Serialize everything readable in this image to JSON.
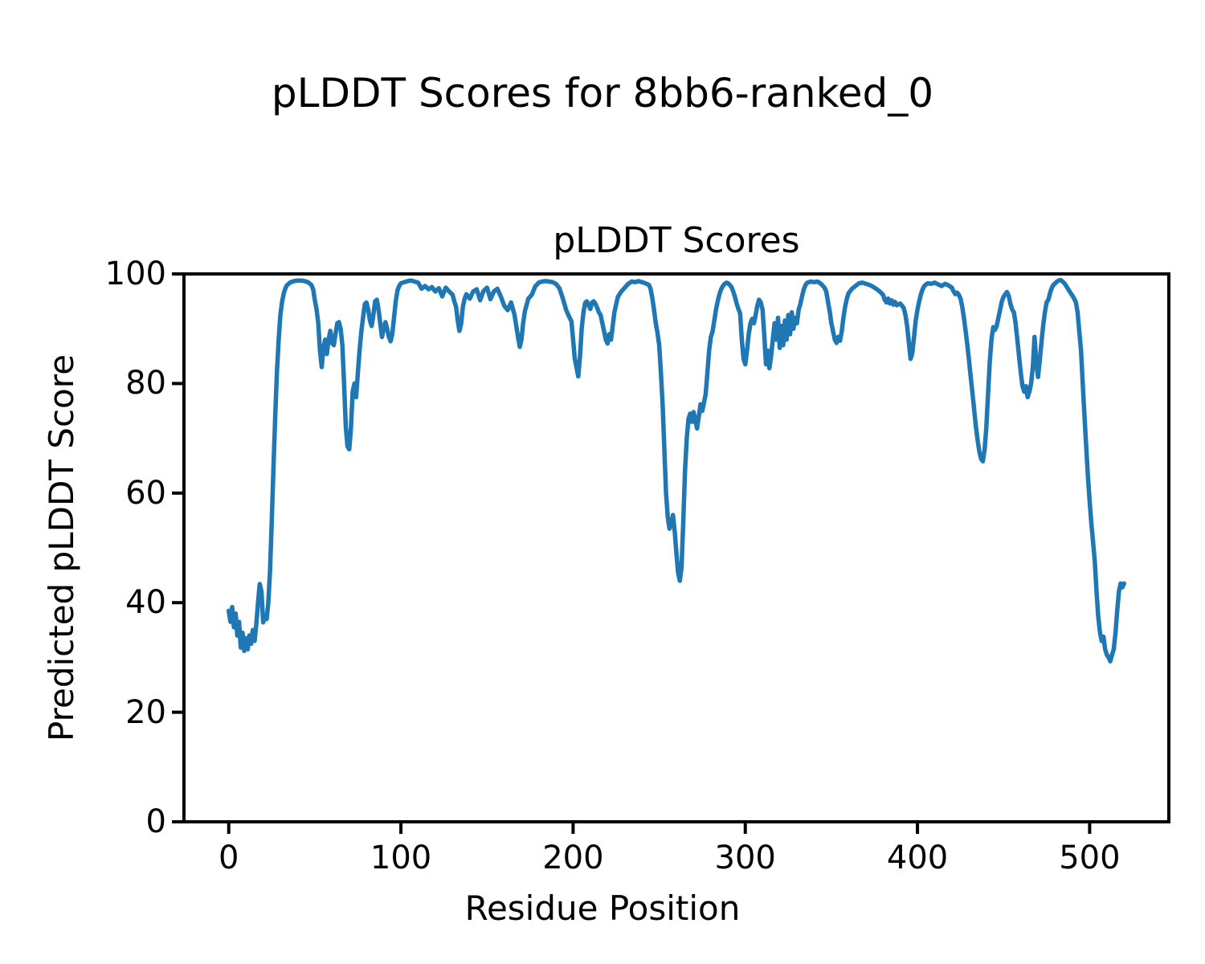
{
  "figure": {
    "suptitle": "pLDDT Scores for 8bb6-ranked_0"
  },
  "chart_data": {
    "type": "line",
    "title": "pLDDT Scores",
    "xlabel": "Residue Position",
    "ylabel": "Predicted pLDDT Score",
    "xlim": [
      -26,
      546
    ],
    "ylim": [
      0,
      100
    ],
    "xticks": [
      0,
      100,
      200,
      300,
      400,
      500
    ],
    "yticks": [
      0,
      20,
      40,
      60,
      80,
      100
    ],
    "grid": false,
    "legend_visible": false,
    "line_color": "#1f77b4",
    "series_name": "pLDDT",
    "points": [
      [
        0,
        38.5
      ],
      [
        1,
        36.5
      ],
      [
        2,
        39.2
      ],
      [
        3,
        35.5
      ],
      [
        4,
        38
      ],
      [
        5,
        34
      ],
      [
        6,
        36.5
      ],
      [
        7,
        31.8
      ],
      [
        8,
        34.5
      ],
      [
        9,
        31.2
      ],
      [
        10,
        33.5
      ],
      [
        11,
        31.5
      ],
      [
        12,
        34
      ],
      [
        13,
        32.5
      ],
      [
        14,
        35
      ],
      [
        15,
        33
      ],
      [
        16,
        36
      ],
      [
        17,
        40
      ],
      [
        18,
        43.4
      ],
      [
        19,
        42
      ],
      [
        20,
        36.4
      ],
      [
        21,
        37.5
      ],
      [
        22,
        37
      ],
      [
        23,
        40
      ],
      [
        24,
        46
      ],
      [
        25,
        55
      ],
      [
        26,
        65
      ],
      [
        27,
        74
      ],
      [
        28,
        82
      ],
      [
        29,
        88
      ],
      [
        30,
        92.5
      ],
      [
        31,
        95
      ],
      [
        32,
        96.5
      ],
      [
        33,
        97.5
      ],
      [
        34,
        98
      ],
      [
        36,
        98.5
      ],
      [
        38,
        98.7
      ],
      [
        40,
        98.8
      ],
      [
        42,
        98.8
      ],
      [
        44,
        98.7
      ],
      [
        46,
        98.5
      ],
      [
        48,
        98
      ],
      [
        49,
        97.2
      ],
      [
        50,
        95.2
      ],
      [
        51,
        93.6
      ],
      [
        52,
        91
      ],
      [
        53,
        86
      ],
      [
        54,
        83
      ],
      [
        55,
        86.5
      ],
      [
        56,
        88
      ],
      [
        57,
        85.4
      ],
      [
        58,
        88
      ],
      [
        59,
        89.6
      ],
      [
        60,
        87.4
      ],
      [
        61,
        87
      ],
      [
        62,
        89
      ],
      [
        63,
        91
      ],
      [
        64,
        91.2
      ],
      [
        65,
        90
      ],
      [
        66,
        87
      ],
      [
        67,
        80
      ],
      [
        68,
        72
      ],
      [
        69,
        68.5
      ],
      [
        70,
        68
      ],
      [
        71,
        72
      ],
      [
        72,
        78.5
      ],
      [
        73,
        80
      ],
      [
        74,
        77.5
      ],
      [
        75,
        82
      ],
      [
        76,
        86
      ],
      [
        77,
        89.5
      ],
      [
        78,
        92
      ],
      [
        79,
        94.5
      ],
      [
        80,
        94.8
      ],
      [
        81,
        93.5
      ],
      [
        82,
        91.5
      ],
      [
        83,
        90.5
      ],
      [
        84,
        92.5
      ],
      [
        85,
        95
      ],
      [
        86,
        95.3
      ],
      [
        87,
        93.5
      ],
      [
        88,
        91
      ],
      [
        89,
        88.5
      ],
      [
        90,
        90
      ],
      [
        91,
        91.2
      ],
      [
        92,
        90
      ],
      [
        93,
        88.5
      ],
      [
        94,
        87.7
      ],
      [
        95,
        89
      ],
      [
        96,
        92
      ],
      [
        97,
        95
      ],
      [
        98,
        97
      ],
      [
        99,
        97.8
      ],
      [
        100,
        98.3
      ],
      [
        102,
        98.5
      ],
      [
        104,
        98.7
      ],
      [
        106,
        98.8
      ],
      [
        108,
        98.6
      ],
      [
        110,
        98.4
      ],
      [
        112,
        97.3
      ],
      [
        114,
        97.8
      ],
      [
        116,
        97.2
      ],
      [
        118,
        97.6
      ],
      [
        120,
        96.8
      ],
      [
        122,
        97.4
      ],
      [
        124,
        95.9
      ],
      [
        126,
        97.5
      ],
      [
        128,
        96.8
      ],
      [
        130,
        96.2
      ],
      [
        131,
        95
      ],
      [
        132,
        94
      ],
      [
        133,
        91.5
      ],
      [
        134,
        89.6
      ],
      [
        135,
        91
      ],
      [
        136,
        94
      ],
      [
        137,
        95.5
      ],
      [
        138,
        96.3
      ],
      [
        140,
        95.5
      ],
      [
        142,
        96.8
      ],
      [
        144,
        97.2
      ],
      [
        146,
        95.2
      ],
      [
        148,
        96.9
      ],
      [
        150,
        97.5
      ],
      [
        152,
        95.4
      ],
      [
        154,
        96.8
      ],
      [
        156,
        97.3
      ],
      [
        158,
        95.9
      ],
      [
        160,
        94.2
      ],
      [
        162,
        93.4
      ],
      [
        164,
        94.8
      ],
      [
        166,
        92.5
      ],
      [
        168,
        88.5
      ],
      [
        169,
        86.7
      ],
      [
        170,
        88
      ],
      [
        171,
        91
      ],
      [
        172,
        93.2
      ],
      [
        174,
        95.5
      ],
      [
        176,
        96.2
      ],
      [
        178,
        97.7
      ],
      [
        180,
        98.4
      ],
      [
        182,
        98.6
      ],
      [
        184,
        98.7
      ],
      [
        186,
        98.6
      ],
      [
        188,
        98.5
      ],
      [
        190,
        98.2
      ],
      [
        192,
        97.4
      ],
      [
        194,
        95.6
      ],
      [
        196,
        93.4
      ],
      [
        198,
        92
      ],
      [
        199,
        91.4
      ],
      [
        200,
        88
      ],
      [
        201,
        84.5
      ],
      [
        202,
        82.9
      ],
      [
        203,
        81.3
      ],
      [
        204,
        85
      ],
      [
        205,
        90
      ],
      [
        206,
        93
      ],
      [
        207,
        94.7
      ],
      [
        208,
        95
      ],
      [
        209,
        94.3
      ],
      [
        210,
        93.6
      ],
      [
        211,
        94.8
      ],
      [
        212,
        95
      ],
      [
        213,
        94.5
      ],
      [
        214,
        93.8
      ],
      [
        215,
        93
      ],
      [
        216,
        92.5
      ],
      [
        217,
        91
      ],
      [
        218,
        89.5
      ],
      [
        219,
        88
      ],
      [
        220,
        87.3
      ],
      [
        221,
        89
      ],
      [
        222,
        88
      ],
      [
        223,
        90.5
      ],
      [
        224,
        93
      ],
      [
        226,
        95.8
      ],
      [
        228,
        96.8
      ],
      [
        230,
        97.5
      ],
      [
        232,
        98.2
      ],
      [
        234,
        98.6
      ],
      [
        236,
        98.5
      ],
      [
        238,
        98.7
      ],
      [
        240,
        98.5
      ],
      [
        242,
        98.3
      ],
      [
        244,
        98
      ],
      [
        245,
        97.3
      ],
      [
        246,
        95.6
      ],
      [
        247,
        93.5
      ],
      [
        248,
        91
      ],
      [
        249,
        89.3
      ],
      [
        250,
        87
      ],
      [
        251,
        82
      ],
      [
        252,
        76
      ],
      [
        253,
        68
      ],
      [
        254,
        60
      ],
      [
        255,
        55.5
      ],
      [
        256,
        53.5
      ],
      [
        257,
        54.5
      ],
      [
        258,
        56
      ],
      [
        259,
        53
      ],
      [
        260,
        49
      ],
      [
        261,
        45.5
      ],
      [
        262,
        44
      ],
      [
        263,
        46.5
      ],
      [
        264,
        55
      ],
      [
        265,
        64
      ],
      [
        266,
        70
      ],
      [
        267,
        73.5
      ],
      [
        268,
        74.5
      ],
      [
        269,
        73
      ],
      [
        270,
        74.8
      ],
      [
        271,
        73.2
      ],
      [
        272,
        71.8
      ],
      [
        273,
        74
      ],
      [
        274,
        76.2
      ],
      [
        275,
        75
      ],
      [
        276,
        76.5
      ],
      [
        277,
        78
      ],
      [
        278,
        82
      ],
      [
        279,
        86
      ],
      [
        280,
        88.5
      ],
      [
        281,
        89.5
      ],
      [
        282,
        91.5
      ],
      [
        283,
        93.5
      ],
      [
        284,
        95
      ],
      [
        285,
        96.3
      ],
      [
        286,
        97.2
      ],
      [
        287,
        97.8
      ],
      [
        288,
        98.2
      ],
      [
        289,
        98.4
      ],
      [
        290,
        98.3
      ],
      [
        291,
        98
      ],
      [
        292,
        97.6
      ],
      [
        293,
        96.8
      ],
      [
        294,
        95.8
      ],
      [
        295,
        94.6
      ],
      [
        296,
        93.6
      ],
      [
        297,
        92.8
      ],
      [
        298,
        88
      ],
      [
        299,
        84.5
      ],
      [
        300,
        83.5
      ],
      [
        301,
        86
      ],
      [
        302,
        89
      ],
      [
        303,
        91
      ],
      [
        304,
        91.8
      ],
      [
        305,
        91
      ],
      [
        306,
        92.5
      ],
      [
        307,
        94.2
      ],
      [
        308,
        95.3
      ],
      [
        309,
        94.8
      ],
      [
        310,
        93.5
      ],
      [
        311,
        89
      ],
      [
        312,
        83.5
      ],
      [
        313,
        86
      ],
      [
        314,
        82.8
      ],
      [
        315,
        85
      ],
      [
        316,
        88
      ],
      [
        317,
        91
      ],
      [
        318,
        88
      ],
      [
        319,
        92
      ],
      [
        320,
        86.5
      ],
      [
        321,
        90.5
      ],
      [
        322,
        87
      ],
      [
        323,
        91.5
      ],
      [
        324,
        88
      ],
      [
        325,
        92.5
      ],
      [
        326,
        89
      ],
      [
        327,
        93
      ],
      [
        328,
        90
      ],
      [
        329,
        92
      ],
      [
        330,
        91
      ],
      [
        331,
        93.5
      ],
      [
        332,
        94.5
      ],
      [
        333,
        96
      ],
      [
        334,
        97.2
      ],
      [
        335,
        98
      ],
      [
        336,
        98.4
      ],
      [
        338,
        98.6
      ],
      [
        340,
        98.5
      ],
      [
        342,
        98.6
      ],
      [
        344,
        98.2
      ],
      [
        346,
        97.5
      ],
      [
        347,
        96.8
      ],
      [
        348,
        95
      ],
      [
        349,
        93.2
      ],
      [
        350,
        91
      ],
      [
        351,
        89.5
      ],
      [
        352,
        88
      ],
      [
        353,
        87.4
      ],
      [
        354,
        88.5
      ],
      [
        355,
        87.8
      ],
      [
        356,
        89.5
      ],
      [
        357,
        92
      ],
      [
        358,
        94
      ],
      [
        359,
        95.5
      ],
      [
        360,
        96.5
      ],
      [
        362,
        97.3
      ],
      [
        364,
        97.8
      ],
      [
        366,
        98.3
      ],
      [
        368,
        98.4
      ],
      [
        370,
        98.2
      ],
      [
        372,
        98
      ],
      [
        374,
        97.7
      ],
      [
        376,
        97.3
      ],
      [
        378,
        96.8
      ],
      [
        380,
        96.2
      ],
      [
        381,
        95.3
      ],
      [
        382,
        94.8
      ],
      [
        383,
        95.5
      ],
      [
        384,
        94.6
      ],
      [
        385,
        95.2
      ],
      [
        386,
        94.4
      ],
      [
        387,
        94.9
      ],
      [
        388,
        94.3
      ],
      [
        390,
        94.6
      ],
      [
        392,
        93.8
      ],
      [
        393,
        92.5
      ],
      [
        394,
        90.5
      ],
      [
        395,
        87.5
      ],
      [
        396,
        84.5
      ],
      [
        397,
        85.5
      ],
      [
        398,
        88.5
      ],
      [
        399,
        91.5
      ],
      [
        400,
        93.5
      ],
      [
        401,
        95
      ],
      [
        402,
        96.3
      ],
      [
        403,
        97.2
      ],
      [
        404,
        97.8
      ],
      [
        405,
        98.1
      ],
      [
        406,
        98.3
      ],
      [
        408,
        98.2
      ],
      [
        410,
        98.4
      ],
      [
        412,
        98.1
      ],
      [
        414,
        97.8
      ],
      [
        416,
        98.2
      ],
      [
        418,
        97.9
      ],
      [
        420,
        97.5
      ],
      [
        421,
        96.8
      ],
      [
        422,
        96.3
      ],
      [
        423,
        96.6
      ],
      [
        424,
        96.2
      ],
      [
        425,
        95.5
      ],
      [
        426,
        94
      ],
      [
        427,
        92
      ],
      [
        428,
        89.5
      ],
      [
        429,
        87
      ],
      [
        430,
        84
      ],
      [
        431,
        81
      ],
      [
        432,
        78
      ],
      [
        433,
        75
      ],
      [
        434,
        72
      ],
      [
        435,
        69.5
      ],
      [
        436,
        67.5
      ],
      [
        437,
        66.2
      ],
      [
        438,
        65.8
      ],
      [
        439,
        68
      ],
      [
        440,
        72
      ],
      [
        441,
        78
      ],
      [
        442,
        84
      ],
      [
        443,
        88
      ],
      [
        444,
        90.3
      ],
      [
        445,
        89.8
      ],
      [
        446,
        90.5
      ],
      [
        447,
        92
      ],
      [
        448,
        93.5
      ],
      [
        449,
        95
      ],
      [
        450,
        95.8
      ],
      [
        451,
        96.3
      ],
      [
        452,
        96.7
      ],
      [
        453,
        96
      ],
      [
        454,
        94.5
      ],
      [
        455,
        93.5
      ],
      [
        456,
        93
      ],
      [
        457,
        91
      ],
      [
        458,
        88
      ],
      [
        459,
        85
      ],
      [
        460,
        82
      ],
      [
        461,
        79.5
      ],
      [
        462,
        78.5
      ],
      [
        463,
        79.5
      ],
      [
        464,
        77.5
      ],
      [
        465,
        78.5
      ],
      [
        466,
        80
      ],
      [
        467,
        83
      ],
      [
        468,
        88.5
      ],
      [
        469,
        84
      ],
      [
        470,
        81.2
      ],
      [
        471,
        84
      ],
      [
        472,
        87.5
      ],
      [
        473,
        90.5
      ],
      [
        474,
        93
      ],
      [
        475,
        94.8
      ],
      [
        476,
        95.3
      ],
      [
        477,
        96.5
      ],
      [
        478,
        97.5
      ],
      [
        479,
        98
      ],
      [
        480,
        98.3
      ],
      [
        481,
        98.6
      ],
      [
        482,
        98.8
      ],
      [
        483,
        98.9
      ],
      [
        484,
        98.7
      ],
      [
        485,
        98.4
      ],
      [
        486,
        98
      ],
      [
        487,
        97.5
      ],
      [
        488,
        97
      ],
      [
        489,
        96.5
      ],
      [
        490,
        96
      ],
      [
        491,
        95.5
      ],
      [
        492,
        94.8
      ],
      [
        493,
        93
      ],
      [
        494,
        89.5
      ],
      [
        495,
        86
      ],
      [
        496,
        80
      ],
      [
        497,
        74
      ],
      [
        498,
        68.5
      ],
      [
        499,
        63
      ],
      [
        500,
        58.5
      ],
      [
        501,
        54.5
      ],
      [
        502,
        51
      ],
      [
        503,
        47.5
      ],
      [
        504,
        42
      ],
      [
        505,
        37.5
      ],
      [
        506,
        34.5
      ],
      [
        507,
        33
      ],
      [
        508,
        33.8
      ],
      [
        509,
        31.5
      ],
      [
        510,
        30.5
      ],
      [
        511,
        30
      ],
      [
        512,
        29.3
      ],
      [
        513,
        30.5
      ],
      [
        514,
        31.5
      ],
      [
        515,
        34.5
      ],
      [
        516,
        38.5
      ],
      [
        517,
        42
      ],
      [
        518,
        43.5
      ],
      [
        519,
        42.8
      ],
      [
        520,
        43.5
      ]
    ]
  }
}
